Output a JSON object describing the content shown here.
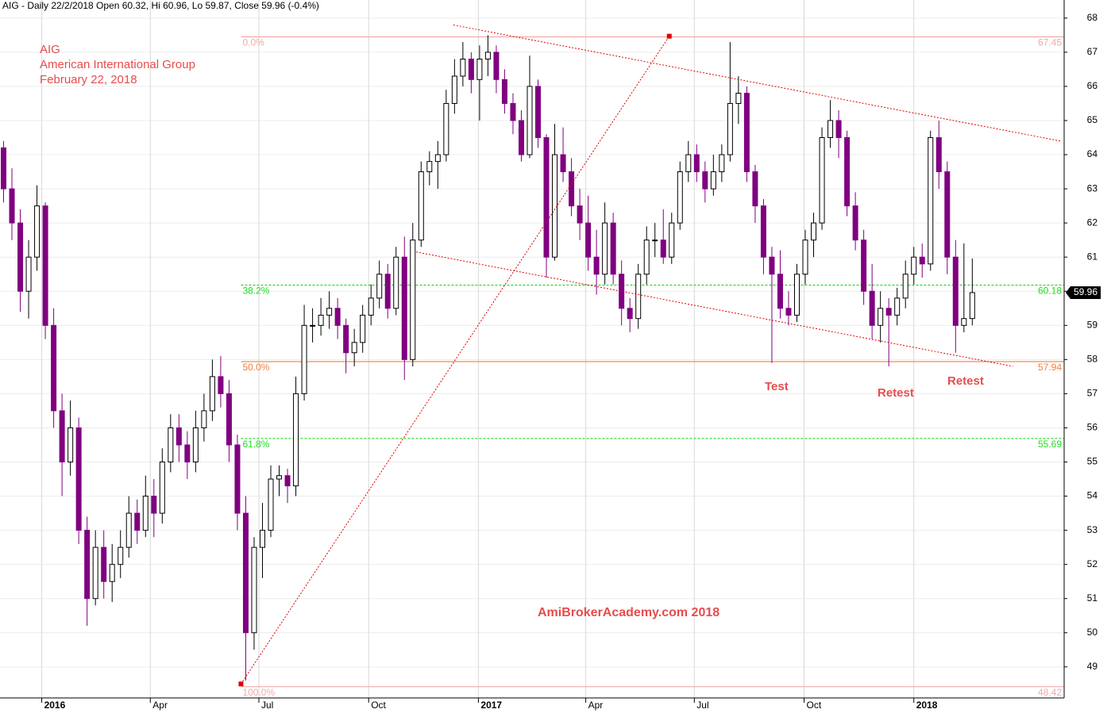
{
  "chart_data": {
    "type": "candlestick",
    "header": "AIG - Daily 22/2/2018 Open 60.32, Hi 60.96, Lo 59.87, Close 59.96 (-0.4%)",
    "annotations": [
      "AIG",
      "American International Group",
      "February 22, 2018",
      "Test",
      "Retest",
      "Retest",
      "AmiBrokerAcademy.com  2018"
    ],
    "x": [
      "2015-11-30",
      "2015-12-07",
      "2015-12-14",
      "2015-12-21",
      "2015-12-28",
      "2016-01-04",
      "2016-01-11",
      "2016-01-18",
      "2016-01-25",
      "2016-02-01",
      "2016-02-08",
      "2016-02-15",
      "2016-02-22",
      "2016-02-29",
      "2016-03-07",
      "2016-03-14",
      "2016-03-21",
      "2016-03-28",
      "2016-04-04",
      "2016-04-11",
      "2016-04-18",
      "2016-04-25",
      "2016-05-02",
      "2016-05-09",
      "2016-05-16",
      "2016-05-23",
      "2016-05-30",
      "2016-06-06",
      "2016-06-13",
      "2016-06-20",
      "2016-06-27",
      "2016-07-04",
      "2016-07-11",
      "2016-07-18",
      "2016-07-25",
      "2016-08-01",
      "2016-08-08",
      "2016-08-15",
      "2016-08-22",
      "2016-08-29",
      "2016-09-05",
      "2016-09-12",
      "2016-09-19",
      "2016-09-26",
      "2016-10-03",
      "2016-10-10",
      "2016-10-17",
      "2016-10-24",
      "2016-10-31",
      "2016-11-07",
      "2016-11-14",
      "2016-11-21",
      "2016-11-28",
      "2016-12-05",
      "2016-12-12",
      "2016-12-19",
      "2016-12-26",
      "2017-01-02",
      "2017-01-09",
      "2017-01-16",
      "2017-01-23",
      "2017-01-30",
      "2017-02-06",
      "2017-02-13",
      "2017-02-20",
      "2017-02-27",
      "2017-03-06",
      "2017-03-13",
      "2017-03-20",
      "2017-03-27",
      "2017-04-03",
      "2017-04-10",
      "2017-04-17",
      "2017-04-24",
      "2017-05-01",
      "2017-05-08",
      "2017-05-15",
      "2017-05-22",
      "2017-05-29",
      "2017-06-05",
      "2017-06-12",
      "2017-06-19",
      "2017-06-26",
      "2017-07-03",
      "2017-07-10",
      "2017-07-17",
      "2017-07-24",
      "2017-07-31",
      "2017-08-07",
      "2017-08-14",
      "2017-08-21",
      "2017-08-28",
      "2017-09-04",
      "2017-09-11",
      "2017-09-18",
      "2017-09-25",
      "2017-10-02",
      "2017-10-09",
      "2017-10-16",
      "2017-10-23",
      "2017-10-30",
      "2017-11-06",
      "2017-11-13",
      "2017-11-20",
      "2017-11-27",
      "2017-12-04",
      "2017-12-11",
      "2017-12-18",
      "2017-12-25",
      "2018-01-01",
      "2018-01-08",
      "2018-01-15",
      "2018-01-22",
      "2018-01-29",
      "2018-02-05",
      "2018-02-12",
      "2018-02-19"
    ],
    "open": [
      64.2,
      63.0,
      62.0,
      60.0,
      61.0,
      62.5,
      59.0,
      56.5,
      55.0,
      56.0,
      53.0,
      51.0,
      52.5,
      51.5,
      52.0,
      52.5,
      53.5,
      53.0,
      54.0,
      53.5,
      55.0,
      56.0,
      55.5,
      55.0,
      56.0,
      56.5,
      57.5,
      57.0,
      55.5,
      53.5,
      50.0,
      52.5,
      53.0,
      54.5,
      54.6,
      54.3,
      57.0,
      59.0,
      59.0,
      59.3,
      59.5,
      59.0,
      58.2,
      58.5,
      59.3,
      59.8,
      60.5,
      59.5,
      61.0,
      58.0,
      61.5,
      63.5,
      63.8,
      64.0,
      65.5,
      66.3,
      66.8,
      66.2,
      66.8,
      67.0,
      66.2,
      65.5,
      65.0,
      64.0,
      66.0,
      64.5,
      61.0,
      64.0,
      63.5,
      62.5,
      62.0,
      61.0,
      60.5,
      62.0,
      60.5,
      59.5,
      59.2,
      60.5,
      61.5,
      61.5,
      61.0,
      62.0,
      63.5,
      64.0,
      63.5,
      63.0,
      63.5,
      64.0,
      65.5,
      65.8,
      63.5,
      62.5,
      61.0,
      60.5,
      59.5,
      59.3,
      60.5,
      61.5,
      62.0,
      64.5,
      65.0,
      64.5,
      62.5,
      61.5,
      60.0,
      59.0,
      59.5,
      59.3,
      59.8,
      60.5,
      61.0,
      60.8,
      64.5,
      63.5,
      61.0,
      59.0,
      59.2
    ],
    "high": [
      64.4,
      63.6,
      62.4,
      61.5,
      63.1,
      62.6,
      59.5,
      57.0,
      56.8,
      56.3,
      53.4,
      53.0,
      53.0,
      52.6,
      53.0,
      54.0,
      53.9,
      54.6,
      54.5,
      55.4,
      56.4,
      56.4,
      55.9,
      56.5,
      57.0,
      58.0,
      58.1,
      57.4,
      55.8,
      54.0,
      52.8,
      53.8,
      54.9,
      54.9,
      54.8,
      57.5,
      59.6,
      59.5,
      59.8,
      60.0,
      59.8,
      59.2,
      58.9,
      59.6,
      60.2,
      60.9,
      60.8,
      61.3,
      61.6,
      62.0,
      63.8,
      64.1,
      64.4,
      65.9,
      66.8,
      67.3,
      67.0,
      67.2,
      67.5,
      67.2,
      66.5,
      65.8,
      65.3,
      66.9,
      66.2,
      64.6,
      64.9,
      64.8,
      63.9,
      63.0,
      62.8,
      61.8,
      62.6,
      62.3,
      60.9,
      59.8,
      60.8,
      61.9,
      62.0,
      62.4,
      62.3,
      63.8,
      64.4,
      64.3,
      63.8,
      64.0,
      64.3,
      67.3,
      66.3,
      66.0,
      63.7,
      62.7,
      61.3,
      61.2,
      60.0,
      60.8,
      61.8,
      62.3,
      64.8,
      65.6,
      65.3,
      64.7,
      62.9,
      61.8,
      60.8,
      60.0,
      59.8,
      60.1,
      60.9,
      61.3,
      61.4,
      64.7,
      65.0,
      63.8,
      61.5,
      61.4,
      60.96
    ],
    "low": [
      62.6,
      61.5,
      59.4,
      59.2,
      60.6,
      58.6,
      56.0,
      54.0,
      54.6,
      52.6,
      50.2,
      50.8,
      51.0,
      50.9,
      51.6,
      52.2,
      52.6,
      52.8,
      52.8,
      53.2,
      54.7,
      55.0,
      54.5,
      54.7,
      55.6,
      56.2,
      56.6,
      55.0,
      53.0,
      48.6,
      49.5,
      51.6,
      52.8,
      54.0,
      53.8,
      54.0,
      56.8,
      58.5,
      58.7,
      58.9,
      58.6,
      57.6,
      57.8,
      58.2,
      59.0,
      59.5,
      59.2,
      59.3,
      57.4,
      57.8,
      61.3,
      63.1,
      63.0,
      63.8,
      65.2,
      66.0,
      65.8,
      65.0,
      66.3,
      65.8,
      65.2,
      64.6,
      63.8,
      63.9,
      64.2,
      60.4,
      60.9,
      63.2,
      62.2,
      61.5,
      60.6,
      59.9,
      60.2,
      60.2,
      59.0,
      58.8,
      58.9,
      60.2,
      61.0,
      60.8,
      60.8,
      61.8,
      63.2,
      63.2,
      62.6,
      62.8,
      63.2,
      63.8,
      64.9,
      63.2,
      62.0,
      60.5,
      57.9,
      59.2,
      59.0,
      59.1,
      60.2,
      61.0,
      61.8,
      64.2,
      63.9,
      62.2,
      61.2,
      59.6,
      58.6,
      58.5,
      57.8,
      59.0,
      59.5,
      60.2,
      60.4,
      60.6,
      63.0,
      60.5,
      58.2,
      58.8,
      59.0
    ],
    "close": [
      63.0,
      62.0,
      60.0,
      61.0,
      62.5,
      59.0,
      56.5,
      55.0,
      56.0,
      53.0,
      51.0,
      52.5,
      51.5,
      52.0,
      52.5,
      53.5,
      53.0,
      54.0,
      53.5,
      55.0,
      56.0,
      55.5,
      55.0,
      56.0,
      56.5,
      57.5,
      57.0,
      55.5,
      53.5,
      50.0,
      52.5,
      53.0,
      54.5,
      54.6,
      54.3,
      57.0,
      59.0,
      59.0,
      59.3,
      59.5,
      59.0,
      58.2,
      58.5,
      59.3,
      59.8,
      60.5,
      59.5,
      61.0,
      58.0,
      61.5,
      63.5,
      63.8,
      64.0,
      65.5,
      66.3,
      66.8,
      66.2,
      66.8,
      67.0,
      66.2,
      65.5,
      65.0,
      64.0,
      66.0,
      64.5,
      61.0,
      64.0,
      63.5,
      62.5,
      62.0,
      61.0,
      60.5,
      62.0,
      60.5,
      59.5,
      59.2,
      60.5,
      61.5,
      61.5,
      61.0,
      62.0,
      63.5,
      64.0,
      63.5,
      63.0,
      63.5,
      64.0,
      65.5,
      65.8,
      63.5,
      62.5,
      61.0,
      60.5,
      59.5,
      59.3,
      60.5,
      61.5,
      62.0,
      64.5,
      65.0,
      64.5,
      62.5,
      61.5,
      60.0,
      59.0,
      59.5,
      59.3,
      59.8,
      60.5,
      61.0,
      60.8,
      64.5,
      63.5,
      61.0,
      59.0,
      59.2,
      59.96
    ],
    "up_color": "#000000",
    "down_color": "#800080",
    "xlim": [
      "2015-11-27",
      "2018-05-07"
    ],
    "xticks": [
      {
        "value": "2016-01-01",
        "label": "2016"
      },
      {
        "value": "2016-04-01",
        "label": "Apr"
      },
      {
        "value": "2016-07-01",
        "label": "Jul"
      },
      {
        "value": "2016-10-01",
        "label": "Oct"
      },
      {
        "value": "2017-01-01",
        "label": "2017"
      },
      {
        "value": "2017-04-01",
        "label": "Apr"
      },
      {
        "value": "2017-07-01",
        "label": "Jul"
      },
      {
        "value": "2017-10-01",
        "label": "Oct"
      },
      {
        "value": "2018-01-01",
        "label": "2018"
      }
    ],
    "ylim": [
      48.09,
      68.53
    ],
    "yticks": [
      49,
      50,
      51,
      52,
      53,
      54,
      55,
      56,
      57,
      58,
      59,
      60,
      61,
      62,
      63,
      64,
      65,
      66,
      67,
      68
    ],
    "grid": true,
    "fib_start": "2016-06-16",
    "fib_levels": [
      {
        "label": "0.0%",
        "value": 67.45,
        "color": "#f4a8a8",
        "dash": "none"
      },
      {
        "label": "38.2%",
        "value": 60.18,
        "color": "#22dd22",
        "dash": "3,2"
      },
      {
        "label": "50.0%",
        "value": 57.94,
        "color": "#f08040",
        "dash": "none"
      },
      {
        "label": "61.8%",
        "value": 55.69,
        "color": "#22dd22",
        "dash": "3,2"
      },
      {
        "label": "100.0%",
        "value": 48.42,
        "color": "#f4a8a8",
        "dash": "none"
      }
    ],
    "trendlines": [
      {
        "x": [
          "2016-12-11",
          "2018-05-04"
        ],
        "y": [
          67.8,
          64.4
        ]
      },
      {
        "x": [
          "2016-11-10",
          "2018-03-25"
        ],
        "y": [
          61.15,
          57.8
        ]
      },
      {
        "x": [
          "2016-06-16",
          "2017-06-10"
        ],
        "y": [
          48.5,
          67.47
        ],
        "markers": true
      }
    ],
    "trend_color": "#e00000"
  }
}
